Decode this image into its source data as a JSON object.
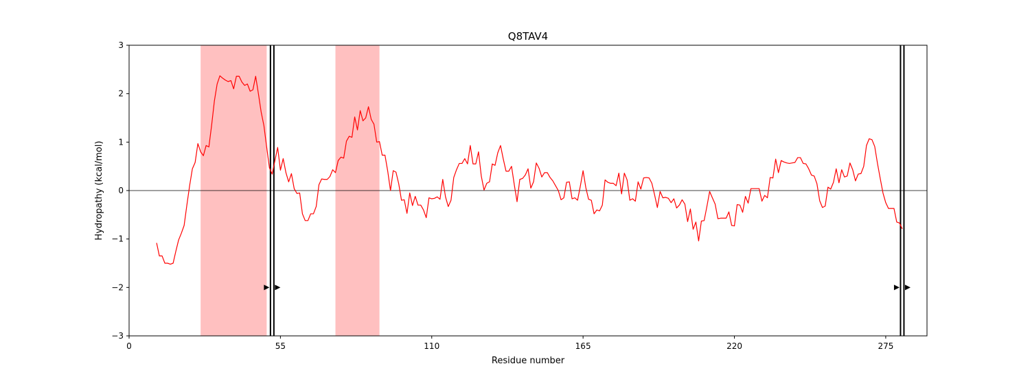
{
  "chart_data": {
    "type": "line",
    "title": "Q8TAV4",
    "xlabel": "Residue number",
    "ylabel": "Hydropathy (kcal/mol)",
    "xlim": [
      0,
      290
    ],
    "ylim": [
      -3,
      3
    ],
    "xticks": [
      0,
      55,
      110,
      165,
      220,
      275
    ],
    "yticks": [
      -3,
      -2,
      -1,
      0,
      1,
      2,
      3
    ],
    "ytick_labels": [
      "−3",
      "−2",
      "−1",
      "0",
      "1",
      "2",
      "3"
    ],
    "line_color": "#ff0000",
    "band_color": "#ffc0c0",
    "zero_line": true,
    "hydrophobic_regions": [
      [
        26,
        50
      ],
      [
        75,
        91
      ]
    ],
    "markers": [
      {
        "x": 52,
        "direction": "right"
      },
      {
        "x": 281,
        "direction": "right"
      }
    ],
    "series": [
      {
        "x": [
          10,
          11,
          12,
          13,
          14,
          15,
          16,
          17,
          18,
          19,
          20,
          21,
          22,
          23,
          24,
          25,
          26,
          27,
          28,
          29,
          30,
          31,
          32,
          33,
          34,
          35,
          36,
          37,
          38,
          39,
          40,
          41,
          42,
          43,
          44,
          45,
          46,
          47,
          48,
          49,
          50,
          51,
          52,
          53,
          54,
          55,
          56,
          57,
          58,
          59,
          60,
          61,
          62,
          63,
          64,
          65,
          66,
          67,
          68,
          69,
          70,
          71,
          72,
          73,
          74,
          75,
          76,
          77,
          78,
          79,
          80,
          81,
          82,
          83,
          84,
          85,
          86,
          87,
          88,
          89,
          90,
          91,
          92,
          93,
          94,
          95,
          96,
          97,
          98,
          99,
          100,
          101,
          102,
          103,
          104,
          105,
          106,
          107,
          108,
          109,
          110,
          111,
          112,
          113,
          114,
          115,
          116,
          117,
          118,
          119,
          120,
          121,
          122,
          123,
          124,
          125,
          126,
          127,
          128,
          129,
          130,
          131,
          132,
          133,
          134,
          135,
          136,
          137,
          138,
          139,
          140,
          141,
          142,
          143,
          144,
          145,
          146,
          147,
          148,
          149,
          150,
          151,
          152,
          153,
          154,
          155,
          156,
          157,
          158,
          159,
          160,
          161,
          162,
          163,
          164,
          165,
          166,
          167,
          168,
          169,
          170,
          171,
          172,
          173,
          174,
          175,
          176,
          177,
          178,
          179,
          180,
          181,
          182,
          183,
          184,
          185,
          186,
          187,
          188,
          189,
          190,
          191,
          192,
          193,
          194,
          195,
          196,
          197,
          198,
          199,
          200,
          201,
          202,
          203,
          204,
          205,
          206,
          207,
          208,
          209,
          210,
          211,
          212,
          213,
          214,
          215,
          216,
          217,
          218,
          219,
          220,
          221,
          222,
          223,
          224,
          225,
          226,
          227,
          228,
          229,
          230,
          231,
          232,
          233,
          234,
          235,
          236,
          237,
          238,
          239,
          240,
          241,
          242,
          243,
          244,
          245,
          246,
          247,
          248,
          249,
          250,
          251,
          252,
          253,
          254,
          255,
          256,
          257,
          258,
          259,
          260,
          261,
          262,
          263,
          264,
          265,
          266,
          267,
          268,
          269,
          270,
          271,
          272,
          273,
          274,
          275,
          276,
          277,
          278,
          279,
          280,
          281
        ],
        "y": [
          -1.08,
          -1.35,
          -1.35,
          -1.5,
          -1.5,
          -1.52,
          -1.5,
          -1.25,
          -1.02,
          -0.88,
          -0.72,
          -0.3,
          0.1,
          0.45,
          0.58,
          0.97,
          0.8,
          0.72,
          0.93,
          0.9,
          1.35,
          1.85,
          2.2,
          2.37,
          2.32,
          2.28,
          2.25,
          2.27,
          2.1,
          2.36,
          2.36,
          2.24,
          2.17,
          2.2,
          2.05,
          2.08,
          2.36,
          2.0,
          1.62,
          1.34,
          0.9,
          0.47,
          0.34,
          0.62,
          0.89,
          0.42,
          0.66,
          0.37,
          0.18,
          0.35,
          0.04,
          -0.06,
          -0.05,
          -0.48,
          -0.62,
          -0.62,
          -0.48,
          -0.48,
          -0.33,
          0.12,
          0.24,
          0.23,
          0.23,
          0.29,
          0.43,
          0.37,
          0.62,
          0.69,
          0.67,
          1.02,
          1.12,
          1.1,
          1.52,
          1.25,
          1.65,
          1.44,
          1.5,
          1.73,
          1.47,
          1.37,
          1.0,
          1.01,
          0.73,
          0.73,
          0.4,
          0.0,
          0.41,
          0.38,
          0.14,
          -0.2,
          -0.19,
          -0.47,
          -0.05,
          -0.31,
          -0.12,
          -0.3,
          -0.3,
          -0.4,
          -0.56,
          -0.15,
          -0.17,
          -0.16,
          -0.13,
          -0.18,
          0.23,
          -0.13,
          -0.33,
          -0.2,
          0.27,
          0.43,
          0.56,
          0.56,
          0.66,
          0.55,
          0.93,
          0.55,
          0.55,
          0.8,
          0.3,
          0.01,
          0.15,
          0.18,
          0.55,
          0.52,
          0.78,
          0.93,
          0.65,
          0.4,
          0.4,
          0.5,
          0.12,
          -0.23,
          0.23,
          0.25,
          0.32,
          0.45,
          0.05,
          0.18,
          0.57,
          0.46,
          0.28,
          0.37,
          0.37,
          0.27,
          0.2,
          0.1,
          0.0,
          -0.19,
          -0.15,
          0.17,
          0.18,
          -0.17,
          -0.15,
          -0.2,
          0.09,
          0.41,
          0.06,
          -0.18,
          -0.2,
          -0.48,
          -0.4,
          -0.42,
          -0.3,
          0.22,
          0.17,
          0.15,
          0.15,
          0.1,
          0.36,
          -0.07,
          0.36,
          0.22,
          -0.2,
          -0.17,
          -0.22,
          0.18,
          0.03,
          0.26,
          0.27,
          0.26,
          0.15,
          -0.09,
          -0.35,
          -0.02,
          -0.15,
          -0.14,
          -0.16,
          -0.25,
          -0.17,
          -0.36,
          -0.3,
          -0.19,
          -0.28,
          -0.64,
          -0.38,
          -0.8,
          -0.65,
          -1.04,
          -0.63,
          -0.62,
          -0.33,
          -0.02,
          -0.15,
          -0.28,
          -0.58,
          -0.57,
          -0.57,
          -0.57,
          -0.44,
          -0.72,
          -0.73,
          -0.29,
          -0.3,
          -0.45,
          -0.12,
          -0.26,
          0.04,
          0.04,
          0.04,
          0.04,
          -0.22,
          -0.1,
          -0.15,
          0.27,
          0.26,
          0.65,
          0.37,
          0.62,
          0.59,
          0.57,
          0.56,
          0.57,
          0.58,
          0.68,
          0.68,
          0.56,
          0.55,
          0.45,
          0.32,
          0.3,
          0.14,
          -0.21,
          -0.35,
          -0.32,
          0.07,
          0.03,
          0.17,
          0.45,
          0.16,
          0.43,
          0.28,
          0.3,
          0.57,
          0.43,
          0.2,
          0.34,
          0.35,
          0.5,
          0.93,
          1.07,
          1.05,
          0.91,
          0.56,
          0.25,
          -0.05,
          -0.25,
          -0.37,
          -0.37,
          -0.37,
          -0.65,
          -0.67,
          -0.79
        ]
      }
    ]
  }
}
